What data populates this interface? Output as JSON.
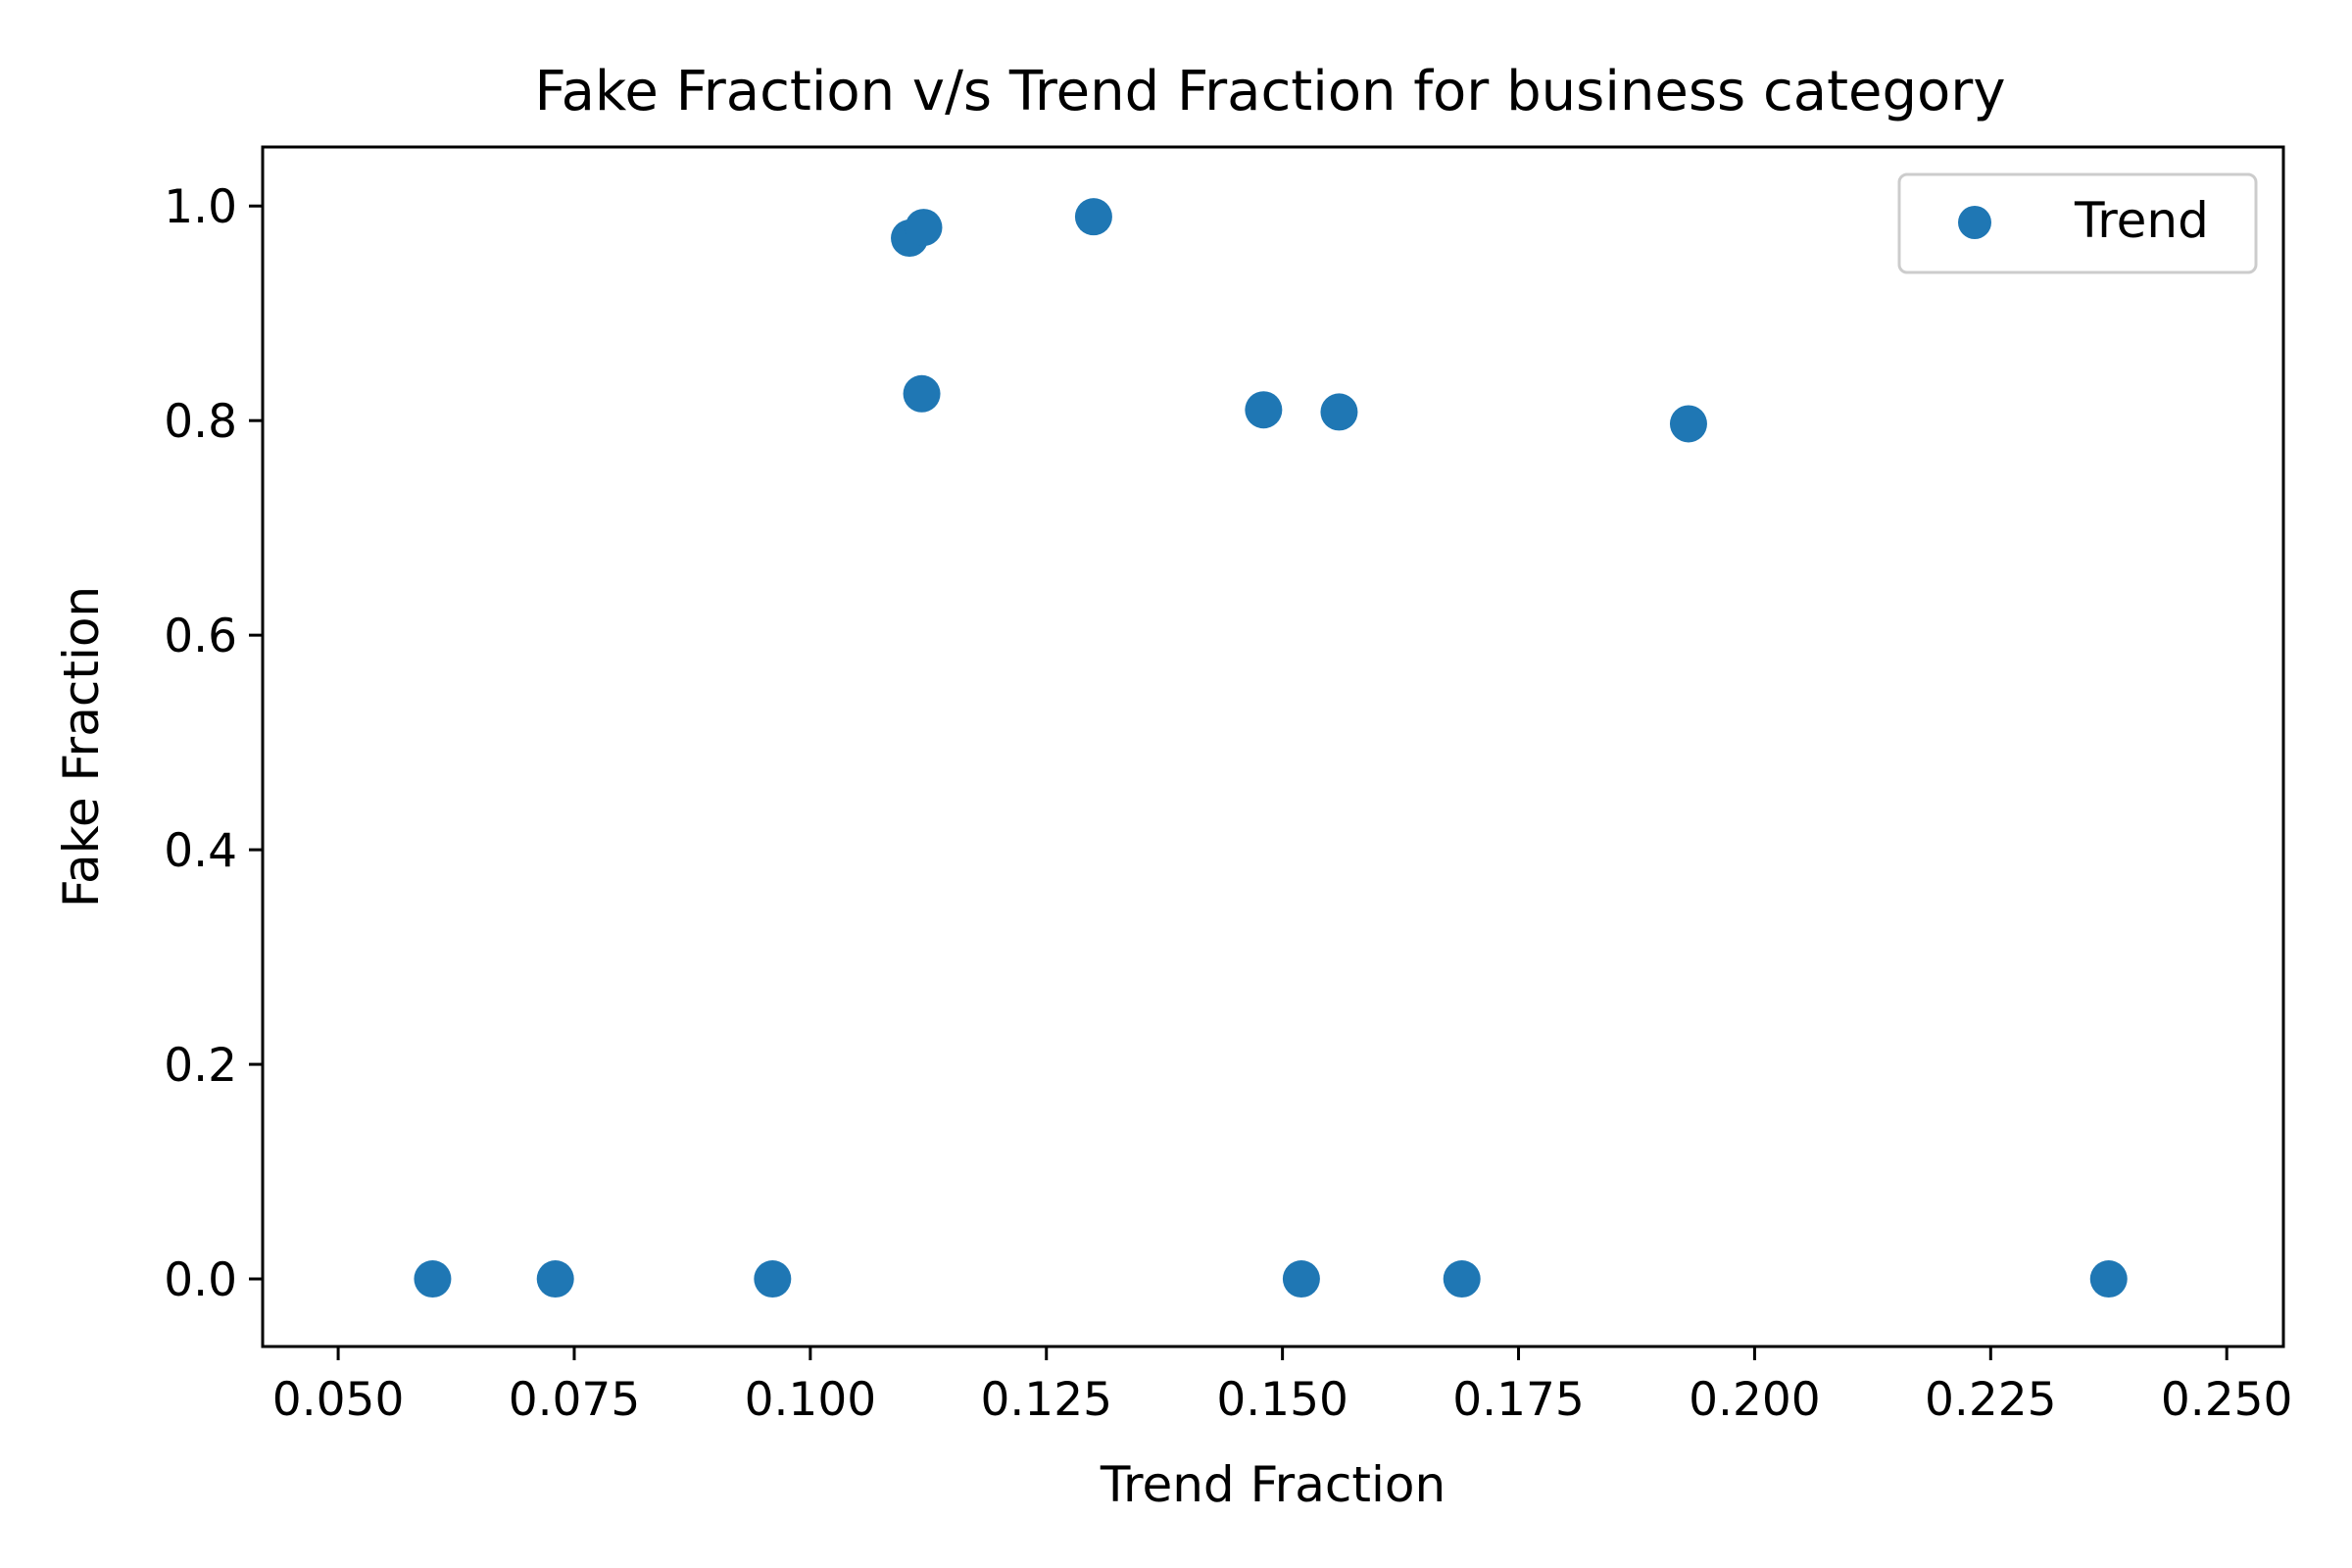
{
  "chart_data": {
    "type": "scatter",
    "title": "Fake Fraction v/s Trend Fraction for business category",
    "xlabel": "Trend Fraction",
    "ylabel": "Fake Fraction",
    "xlim": [
      0.042,
      0.256
    ],
    "ylim": [
      -0.063,
      1.055
    ],
    "xticks": [
      0.05,
      0.075,
      0.1,
      0.125,
      0.15,
      0.175,
      0.2,
      0.225,
      0.25
    ],
    "xtick_labels": [
      "0.050",
      "0.075",
      "0.100",
      "0.125",
      "0.150",
      "0.175",
      "0.200",
      "0.225",
      "0.250"
    ],
    "yticks": [
      0.0,
      0.2,
      0.4,
      0.6,
      0.8,
      1.0
    ],
    "ytick_labels": [
      "0.0",
      "0.2",
      "0.4",
      "0.6",
      "0.8",
      "1.0"
    ],
    "grid": false,
    "legend": {
      "position": "top-right"
    },
    "series": [
      {
        "name": "Trend",
        "color": "#1f77b4",
        "points": [
          {
            "x": 0.06,
            "y": 0.0
          },
          {
            "x": 0.073,
            "y": 0.0
          },
          {
            "x": 0.096,
            "y": 0.0
          },
          {
            "x": 0.1105,
            "y": 0.97
          },
          {
            "x": 0.112,
            "y": 0.98
          },
          {
            "x": 0.1118,
            "y": 0.825
          },
          {
            "x": 0.13,
            "y": 0.99
          },
          {
            "x": 0.148,
            "y": 0.81
          },
          {
            "x": 0.152,
            "y": 0.0
          },
          {
            "x": 0.156,
            "y": 0.808
          },
          {
            "x": 0.169,
            "y": 0.0
          },
          {
            "x": 0.193,
            "y": 0.797
          },
          {
            "x": 0.2375,
            "y": 0.0
          }
        ]
      }
    ]
  }
}
